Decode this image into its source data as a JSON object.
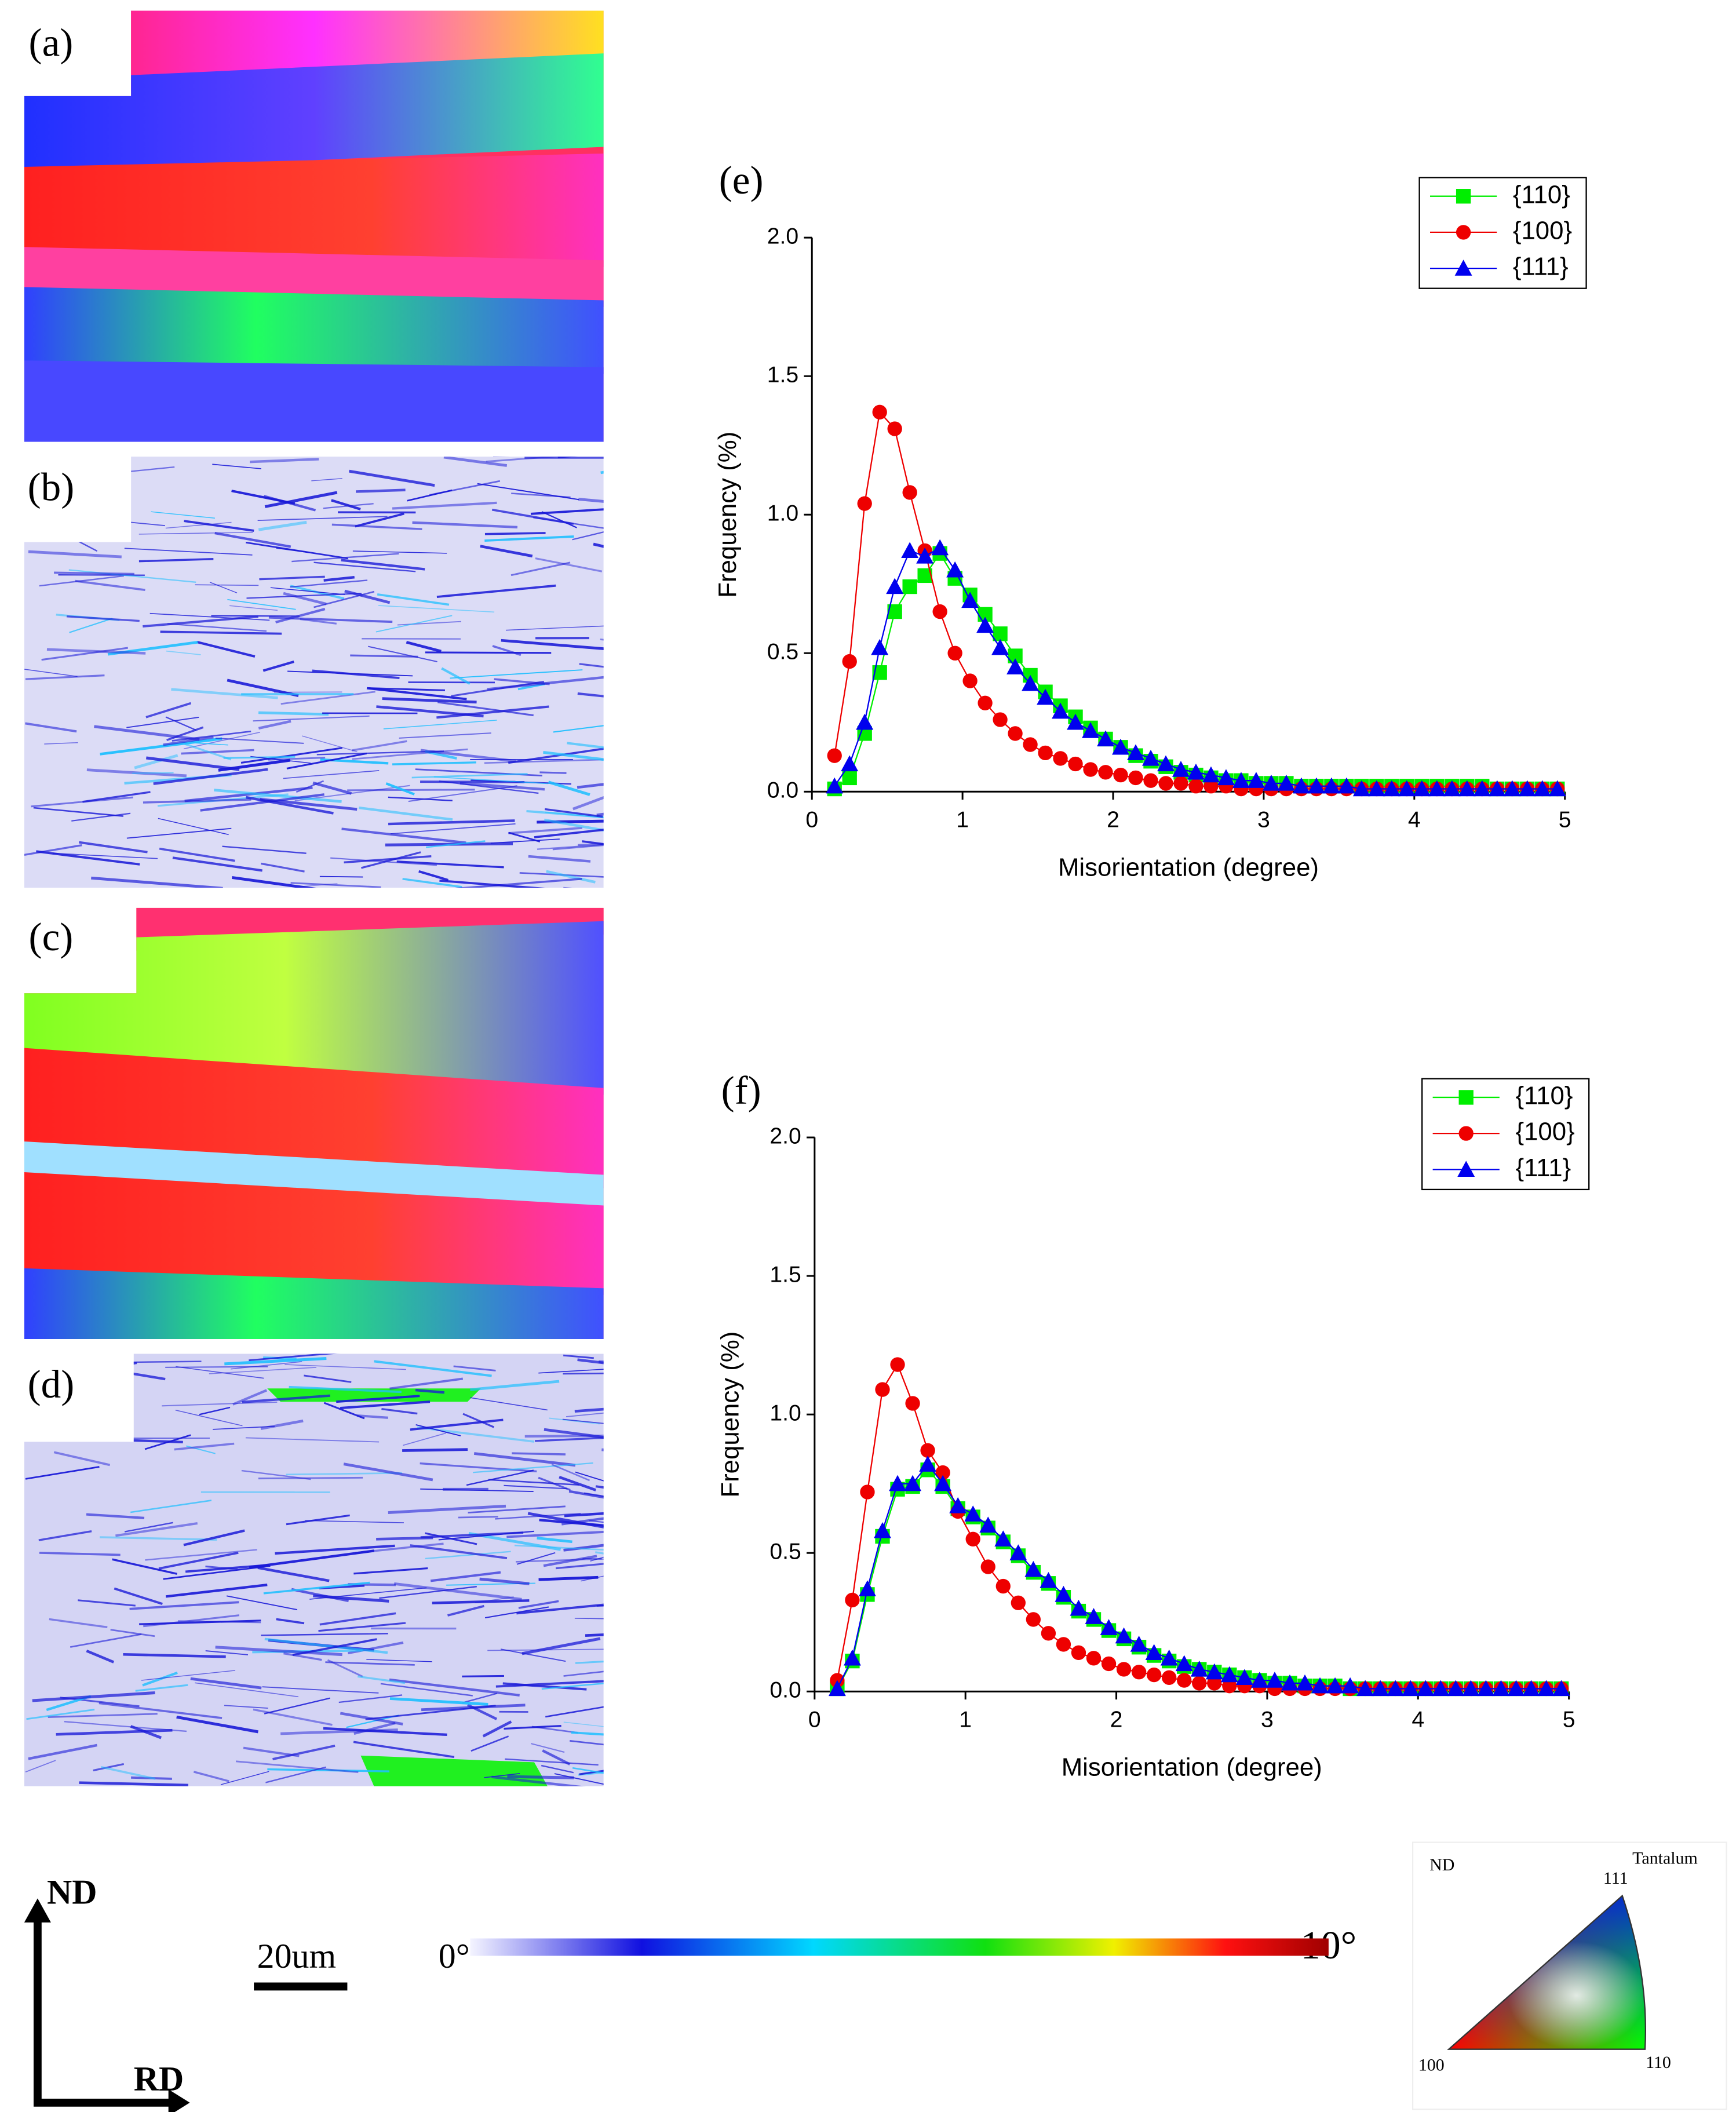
{
  "map_panels": [
    "(a)",
    "(b)",
    "(c)",
    "(d)"
  ],
  "axes_key": {
    "nd": "ND",
    "rd": "RD"
  },
  "scale_bar": "20um",
  "color_bar": {
    "min_label": "0°",
    "max_label": "10°"
  },
  "ipf_key": {
    "axis": "ND",
    "material": "Tantalum",
    "corners": [
      "100",
      "111",
      "110"
    ]
  },
  "chart_data": [
    {
      "type": "line",
      "panel_label": "(e)",
      "xlabel": "Misorientation (degree)",
      "ylabel": "Frequency (%)",
      "xlim": [
        0,
        5
      ],
      "ylim": [
        0,
        2
      ],
      "xticks": [
        0,
        1,
        2,
        3,
        4,
        5
      ],
      "yticks": [
        {
          "value": 0,
          "label": "0.0"
        },
        0.5,
        {
          "value": 1,
          "label": "1.0"
        },
        1.5,
        {
          "value": 2,
          "label": "2.0"
        }
      ],
      "legend": "upper right",
      "x": [
        0.15,
        0.25,
        0.35,
        0.45,
        0.55,
        0.65,
        0.75,
        0.85,
        0.95,
        1.05,
        1.15,
        1.25,
        1.35,
        1.45,
        1.55,
        1.65,
        1.75,
        1.85,
        1.95,
        2.05,
        2.15,
        2.25,
        2.35,
        2.45,
        2.55,
        2.65,
        2.75,
        2.85,
        2.95,
        3.05,
        3.15,
        3.25,
        3.35,
        3.45,
        3.55,
        3.65,
        3.75,
        3.85,
        3.95,
        4.05,
        4.15,
        4.25,
        4.35,
        4.45,
        4.55,
        4.65,
        4.75,
        4.85,
        4.95
      ],
      "series": [
        {
          "name": "{110}",
          "color": "#00ee00",
          "marker": "square",
          "values": [
            0.01,
            0.05,
            0.21,
            0.43,
            0.65,
            0.74,
            0.78,
            0.86,
            0.77,
            0.71,
            0.64,
            0.57,
            0.49,
            0.42,
            0.36,
            0.31,
            0.27,
            0.23,
            0.19,
            0.16,
            0.13,
            0.11,
            0.09,
            0.07,
            0.06,
            0.05,
            0.04,
            0.04,
            0.03,
            0.03,
            0.03,
            0.02,
            0.02,
            0.02,
            0.02,
            0.02,
            0.02,
            0.02,
            0.02,
            0.02,
            0.02,
            0.02,
            0.02,
            0.02,
            0.01,
            0.01,
            0.01,
            0.01,
            0.01
          ]
        },
        {
          "name": "{100}",
          "color": "#ee0000",
          "marker": "circle",
          "values": [
            0.13,
            0.47,
            1.04,
            1.37,
            1.31,
            1.08,
            0.87,
            0.65,
            0.5,
            0.4,
            0.32,
            0.26,
            0.21,
            0.17,
            0.14,
            0.12,
            0.1,
            0.08,
            0.07,
            0.06,
            0.05,
            0.04,
            0.03,
            0.03,
            0.02,
            0.02,
            0.02,
            0.01,
            0.01,
            0.01,
            0.01,
            0.01,
            0.01,
            0.01,
            0.01,
            0.01,
            0.01,
            0.01,
            0.01,
            0.01,
            0.01,
            0.01,
            0.01,
            0.01,
            0.01,
            0.01,
            0.01,
            0.01,
            0.01
          ]
        },
        {
          "name": "{111}",
          "color": "#0000ee",
          "marker": "triangle",
          "values": [
            0.02,
            0.1,
            0.25,
            0.52,
            0.74,
            0.87,
            0.85,
            0.88,
            0.8,
            0.69,
            0.6,
            0.52,
            0.45,
            0.39,
            0.34,
            0.29,
            0.25,
            0.22,
            0.19,
            0.16,
            0.14,
            0.12,
            0.1,
            0.08,
            0.07,
            0.06,
            0.05,
            0.04,
            0.04,
            0.03,
            0.03,
            0.02,
            0.02,
            0.02,
            0.02,
            0.01,
            0.01,
            0.01,
            0.01,
            0.01,
            0.01,
            0.01,
            0.01,
            0.01,
            0.01,
            0.01,
            0.01,
            0.01,
            0.01
          ]
        }
      ]
    },
    {
      "type": "line",
      "panel_label": "(f)",
      "xlabel": "Misorientation (degree)",
      "ylabel": "Frequency (%)",
      "xlim": [
        0,
        5
      ],
      "ylim": [
        0,
        2
      ],
      "xticks": [
        0,
        1,
        2,
        3,
        4,
        5
      ],
      "yticks": [
        {
          "value": 0,
          "label": "0.0"
        },
        0.5,
        {
          "value": 1,
          "label": "1.0"
        },
        1.5,
        {
          "value": 2,
          "label": "2.0"
        }
      ],
      "legend": "upper right",
      "x": [
        0.15,
        0.25,
        0.35,
        0.45,
        0.55,
        0.65,
        0.75,
        0.85,
        0.95,
        1.05,
        1.15,
        1.25,
        1.35,
        1.45,
        1.55,
        1.65,
        1.75,
        1.85,
        1.95,
        2.05,
        2.15,
        2.25,
        2.35,
        2.45,
        2.55,
        2.65,
        2.75,
        2.85,
        2.95,
        3.05,
        3.15,
        3.25,
        3.35,
        3.45,
        3.55,
        3.65,
        3.75,
        3.85,
        3.95,
        4.05,
        4.15,
        4.25,
        4.35,
        4.45,
        4.55,
        4.65,
        4.75,
        4.85,
        4.95
      ],
      "series": [
        {
          "name": "{110}",
          "color": "#00ee00",
          "marker": "square",
          "values": [
            0.01,
            0.11,
            0.35,
            0.56,
            0.73,
            0.74,
            0.8,
            0.74,
            0.66,
            0.63,
            0.59,
            0.54,
            0.49,
            0.43,
            0.39,
            0.34,
            0.29,
            0.26,
            0.22,
            0.19,
            0.16,
            0.13,
            0.11,
            0.09,
            0.08,
            0.07,
            0.06,
            0.05,
            0.04,
            0.03,
            0.03,
            0.02,
            0.02,
            0.02,
            0.01,
            0.01,
            0.01,
            0.01,
            0.01,
            0.01,
            0.01,
            0.01,
            0.01,
            0.01,
            0.01,
            0.01,
            0.01,
            0.01,
            0.01
          ]
        },
        {
          "name": "{100}",
          "color": "#ee0000",
          "marker": "circle",
          "values": [
            0.04,
            0.33,
            0.72,
            1.09,
            1.18,
            1.04,
            0.87,
            0.79,
            0.65,
            0.55,
            0.45,
            0.38,
            0.32,
            0.26,
            0.21,
            0.17,
            0.14,
            0.12,
            0.1,
            0.08,
            0.07,
            0.06,
            0.05,
            0.04,
            0.03,
            0.03,
            0.02,
            0.02,
            0.02,
            0.01,
            0.01,
            0.01,
            0.01,
            0.01,
            0.01,
            0.01,
            0.01,
            0.01,
            0.01,
            0.01,
            0.01,
            0.01,
            0.01,
            0.01,
            0.01,
            0.01,
            0.01,
            0.01,
            0.01
          ]
        },
        {
          "name": "{111}",
          "color": "#0000ee",
          "marker": "triangle",
          "values": [
            0.01,
            0.12,
            0.37,
            0.58,
            0.75,
            0.75,
            0.82,
            0.75,
            0.67,
            0.64,
            0.6,
            0.55,
            0.5,
            0.44,
            0.4,
            0.35,
            0.3,
            0.27,
            0.23,
            0.2,
            0.17,
            0.14,
            0.12,
            0.1,
            0.08,
            0.07,
            0.06,
            0.05,
            0.04,
            0.04,
            0.03,
            0.03,
            0.02,
            0.02,
            0.02,
            0.01,
            0.01,
            0.01,
            0.01,
            0.01,
            0.01,
            0.01,
            0.01,
            0.01,
            0.01,
            0.01,
            0.01,
            0.01,
            0.01
          ]
        }
      ]
    }
  ]
}
